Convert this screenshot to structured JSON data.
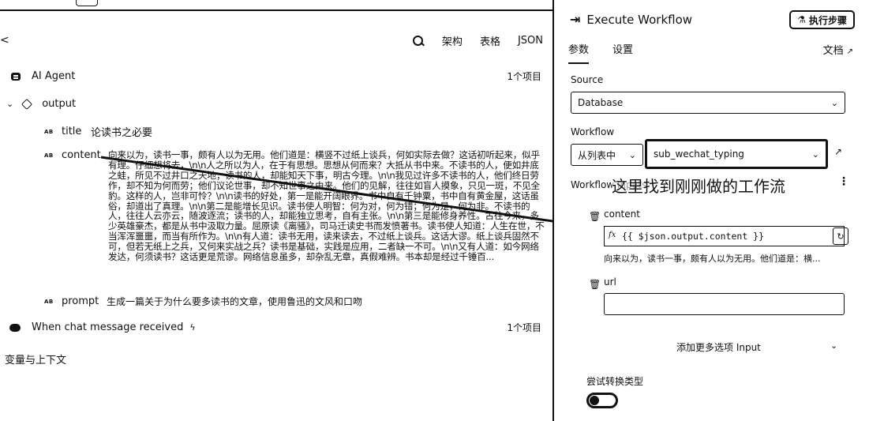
{
  "left": {
    "back_glyph": "<",
    "toolbar": {
      "tab1": "架构",
      "tab2": "表格",
      "tab3": "JSON"
    },
    "ai_agent": {
      "label": "AI Agent",
      "count": "1个项目"
    },
    "output": {
      "label": "output"
    },
    "fields": {
      "type_badge": "AB",
      "title_key": "title",
      "title_val": "论读书之必要",
      "content_key": "content",
      "content_val": "向来以为，读书一事，颇有人以为无用。他们道是：横竖不过纸上谈兵，何如实际去做？这话初听起来，似乎有理。仔细想将去，\\n\\n人之所以为人，在于有思想。思想从何而来？大抵从书中来。不读书的人，便如井底之蛙，所见不过井口之天地；读书的人，却能知天下事，明古今理。\\n\\n我见过许多不读书的人，他们终日劳作，却不知为何而劳；他们议论世事，却不知世事之由来。他们的见解，往往如盲人摸象，只见一斑，不见全豹。这样的人，岂非可怜？\\n\\n读书的好处，第一是能开阔眼界。书中自有千钟粟，书中自有黄金屋，这话虽俗，却道出了真理。\\n\\n第二是能增长见识。读书使人明智：何为对，何为错；何为是，何为非。不读书的人，往往人云亦云，随波逐流；读书的人，却能独立思考，自有主张。\\n\\n第三是能修身养性。古往今来，多少英雄豪杰，都是从书中汲取力量。屈原读《离骚》，司马迁读史书而发愤著书。读书使人知道：人生在世，不当浑浑噩噩，而当有所作为。\\n\\n有人道：读书无用，读来读去，不过纸上谈兵。这话大谬。纸上谈兵固然不可，但若无纸上之兵，又何来实战之兵？读书是基础，实践是应用，二者缺一不可。\\n\\n又有人道：如今网络发达，何须读书？这话更是荒谬。网络信息虽多，却杂乱无章，真假难辨。书本却是经过千锤百...",
      "prompt_key": "prompt",
      "prompt_val": "生成一篇关于为什么要多读书的文章，使用鲁迅的文风和口吻"
    },
    "chat": {
      "label": "When chat message received",
      "count": "1个项目"
    },
    "vars_context": "变量与上下文"
  },
  "right": {
    "title": "Execute Workflow",
    "exec_button": "执行步骤",
    "tabs": [
      "参数",
      "设置"
    ],
    "docs_label": "文档",
    "source": {
      "label": "Source",
      "value": "Database"
    },
    "workflow": {
      "label": "Workflow",
      "mode": "从列表中",
      "value": "sub_wechat_typing"
    },
    "workflow_inputs_label": "Workflow Inputs",
    "annotation": "这里找到刚刚做的工作流",
    "content_input": {
      "label": "content",
      "expression": "{{ $json.output.content }}",
      "preview": "向来以为，读书一事，颇有人以为无用。他们道是：横..."
    },
    "url_input": {
      "label": "url",
      "value": ""
    },
    "add_input_label": "添加更多选项 Input",
    "convert_types_label": "尝试转换类型"
  },
  "colors": {
    "ink": "#111111",
    "bg": "#ffffff"
  }
}
